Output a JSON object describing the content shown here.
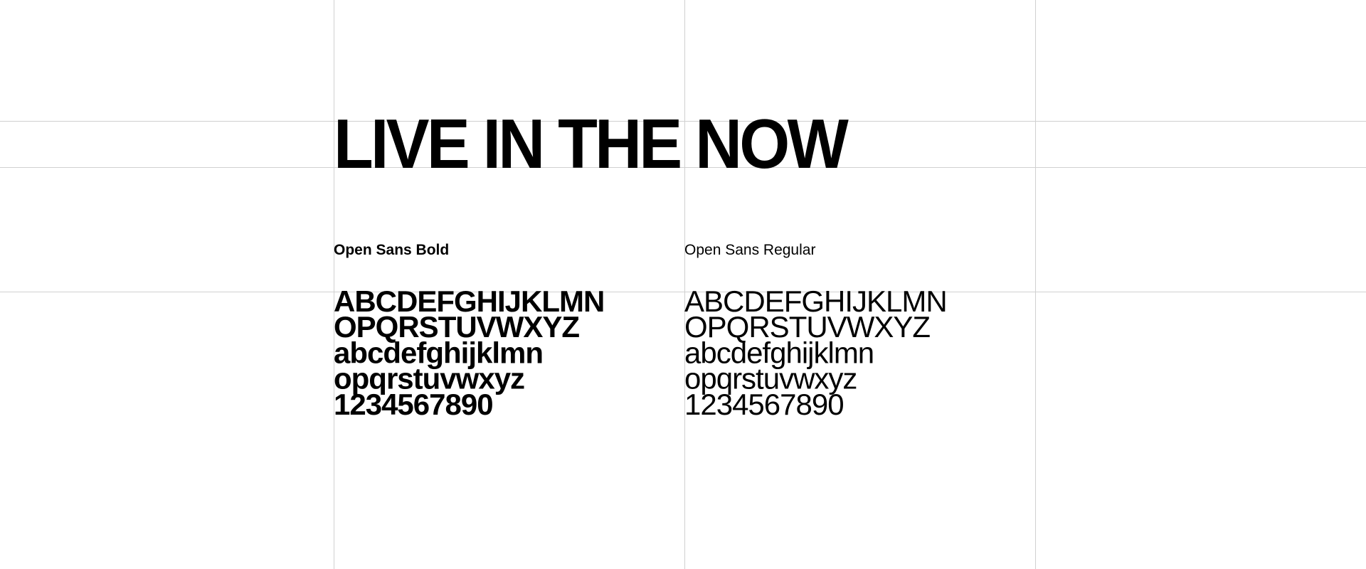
{
  "title": "LIVE IN THE NOW",
  "columns": [
    {
      "label": "Open Sans Bold",
      "lines": [
        "ABCDEFGHIJKLMN",
        "OPQRSTUVWXYZ",
        "abcdefghijklmn",
        "opqrstuvwxyz",
        "1234567890"
      ]
    },
    {
      "label": "Open Sans Regular",
      "lines": [
        "ABCDEFGHIJKLMN",
        "OPQRSTUVWXYZ",
        "abcdefghijklmn",
        "opqrstuvwxyz",
        "1234567890"
      ]
    }
  ]
}
